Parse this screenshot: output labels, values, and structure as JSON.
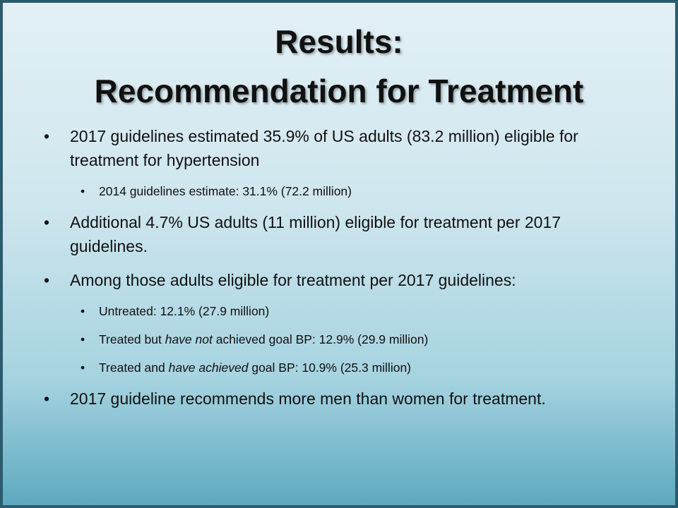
{
  "title": [
    "Results:",
    "Recommendation for Treatment"
  ],
  "bullets": [
    {
      "segments": [
        {
          "text": "2017 guidelines estimated 35.9% of US adults (83.2 million) eligible for treatment for hypertension"
        }
      ],
      "sub": [
        {
          "segments": [
            {
              "text": "2014 guidelines estimate: 31.1% (72.2 million)"
            }
          ]
        }
      ]
    },
    {
      "segments": [
        {
          "text": "Additional 4.7% US adults (11 million) eligible for treatment per 2017 guidelines."
        }
      ]
    },
    {
      "segments": [
        {
          "text": "Among those adults eligible for treatment per 2017 guidelines:"
        }
      ],
      "sub": [
        {
          "segments": [
            {
              "text": "Untreated: 12.1% (27.9 million)"
            }
          ]
        },
        {
          "segments": [
            {
              "text": "Treated but "
            },
            {
              "text": "have not",
              "italic": true
            },
            {
              "text": " achieved goal BP: 12.9% (29.9 million)"
            }
          ]
        },
        {
          "segments": [
            {
              "text": "Treated and "
            },
            {
              "text": "have achieved",
              "italic": true
            },
            {
              "text": " goal BP: 10.9% (25.3 million)"
            }
          ]
        }
      ]
    },
    {
      "segments": [
        {
          "text": "2017 guideline recommends more men than women for treatment."
        }
      ]
    }
  ]
}
